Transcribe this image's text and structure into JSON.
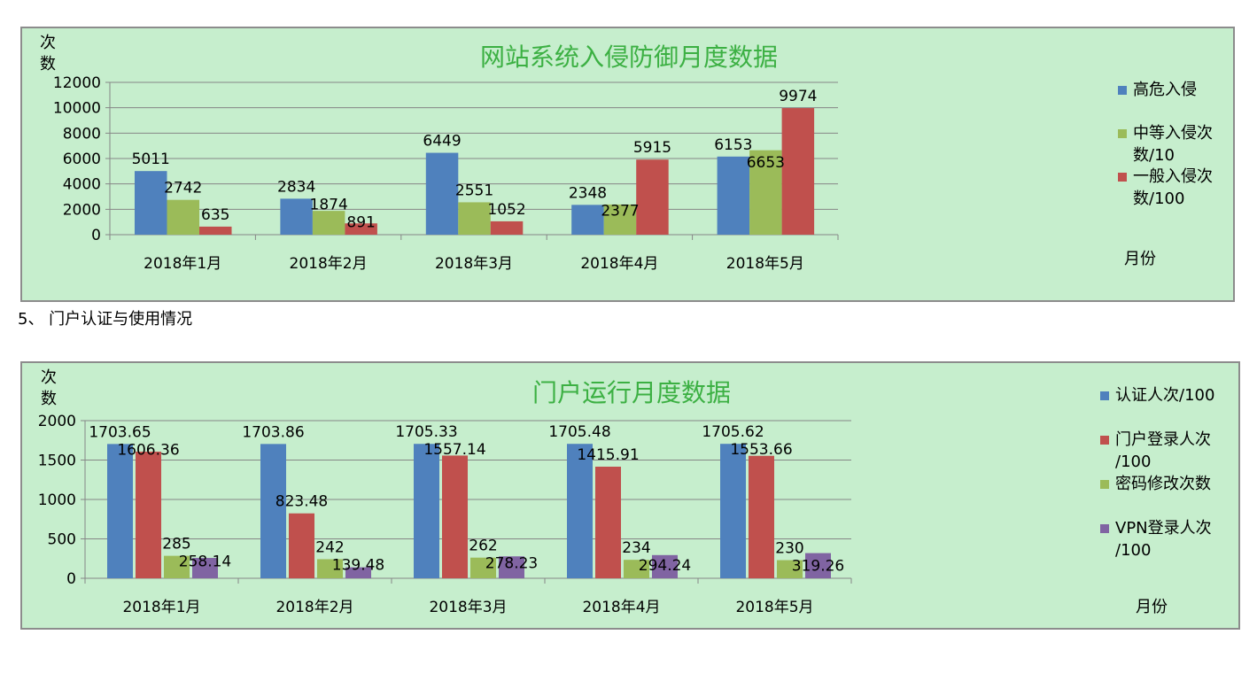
{
  "section_heading": "5、 门户认证与使用情况",
  "chart_data": [
    {
      "type": "bar",
      "title": "网站系统入侵防御月度数据",
      "ylabel": "次数",
      "xlabel": "月份",
      "ylim": [
        0,
        12000
      ],
      "yticks": [
        "0",
        "2000",
        "4000",
        "6000",
        "8000",
        "10000",
        "12000"
      ],
      "grid": true,
      "legend_position": "right",
      "categories": [
        "2018年1月",
        "2018年2月",
        "2018年3月",
        "2018年4月",
        "2018年5月"
      ],
      "series": [
        {
          "name": "高危入侵",
          "color": "#4f81bd",
          "values": [
            5011,
            2834,
            6449,
            2348,
            6153
          ]
        },
        {
          "name": "中等入侵次数/10",
          "color": "#9bbb59",
          "values": [
            2742,
            1874,
            2551,
            2377,
            6653
          ]
        },
        {
          "name": "一般入侵次数/100",
          "color": "#c0504d",
          "values": [
            635,
            891,
            1052,
            5915,
            9974
          ]
        }
      ],
      "legend_lines": [
        [
          "高危入侵"
        ],
        [
          "中等入侵次",
          "数/10"
        ],
        [
          "一般入侵次",
          "数/100"
        ]
      ]
    },
    {
      "type": "bar",
      "title": "门户运行月度数据",
      "ylabel": "次数",
      "xlabel": "月份",
      "ylim": [
        0,
        2000
      ],
      "yticks": [
        "0",
        "500",
        "1000",
        "1500",
        "2000"
      ],
      "grid": true,
      "legend_position": "right",
      "categories": [
        "2018年1月",
        "2018年2月",
        "2018年3月",
        "2018年4月",
        "2018年5月"
      ],
      "series": [
        {
          "name": "认证人次/100",
          "color": "#4f81bd",
          "values": [
            1703.65,
            1703.86,
            1705.33,
            1705.48,
            1705.62
          ]
        },
        {
          "name": "门户登录人次/100",
          "color": "#c0504d",
          "values": [
            1606.36,
            823.48,
            1557.14,
            1415.91,
            1553.66
          ]
        },
        {
          "name": "密码修改次数",
          "color": "#9bbb59",
          "values": [
            285,
            242,
            262,
            234,
            230
          ]
        },
        {
          "name": "VPN登录人次/100",
          "color": "#8064a2",
          "values": [
            258.14,
            139.48,
            278.23,
            294.24,
            319.26
          ]
        }
      ],
      "legend_lines": [
        [
          "认证人次/100"
        ],
        [
          "门户登录人次",
          "/100"
        ],
        [
          "密码修改次数"
        ],
        [
          "VPN登录人次",
          "/100"
        ]
      ]
    }
  ]
}
